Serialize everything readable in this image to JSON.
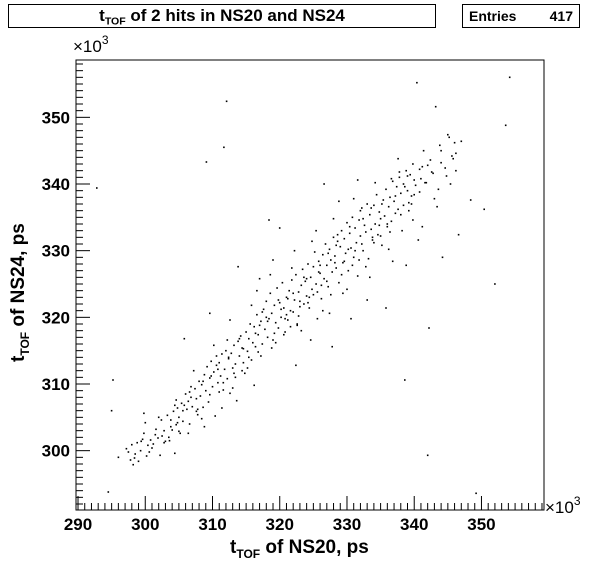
{
  "title_main": "t",
  "title_sub": "TOF",
  "title_rest": " of 2 hits in NS20 and NS24",
  "stats": {
    "label": "Entries",
    "value": "417"
  },
  "chart_data": {
    "type": "scatter",
    "xlabel_main": "t",
    "xlabel_sub": "TOF",
    "xlabel_rest": " of NS20, ps",
    "ylabel_main": "t",
    "ylabel_sub": "TOF",
    "ylabel_rest": " of NS24, ps",
    "x_multiplier": "×10",
    "x_multiplier_exp": "3",
    "y_multiplier": "×10",
    "y_multiplier_exp": "3",
    "xlim": [
      289.7,
      359.3
    ],
    "ylim": [
      291.1,
      358.6
    ],
    "x_ticks": [
      290,
      300,
      310,
      320,
      330,
      340,
      350
    ],
    "y_ticks": [
      300,
      310,
      320,
      330,
      340,
      350
    ],
    "x_tick_labels": [
      "290",
      "300",
      "310",
      "320",
      "330",
      "340",
      "350"
    ],
    "y_tick_labels": [
      "300",
      "310",
      "320",
      "330",
      "340",
      "350"
    ],
    "points": [
      [
        292.8,
        339.4
      ],
      [
        294.5,
        293.8
      ],
      [
        295.0,
        306.0
      ],
      [
        295.2,
        310.6
      ],
      [
        297.2,
        300.3
      ],
      [
        297.5,
        299.8
      ],
      [
        297.8,
        298.6
      ],
      [
        298.0,
        300.9
      ],
      [
        298.2,
        297.9
      ],
      [
        298.5,
        299.5
      ],
      [
        298.8,
        301.2
      ],
      [
        299.0,
        298.4
      ],
      [
        299.3,
        300.0
      ],
      [
        299.6,
        301.7
      ],
      [
        299.8,
        305.6
      ],
      [
        300.2,
        299.2
      ],
      [
        300.4,
        300.8
      ],
      [
        300.8,
        301.6
      ],
      [
        301.2,
        301.0
      ],
      [
        301.5,
        302.4
      ],
      [
        301.9,
        301.9
      ],
      [
        302.2,
        299.3
      ],
      [
        302.5,
        302.2
      ],
      [
        302.8,
        303.0
      ],
      [
        303.0,
        301.4
      ],
      [
        303.3,
        305.3
      ],
      [
        303.5,
        302.0
      ],
      [
        303.8,
        304.6
      ],
      [
        304.0,
        303.1
      ],
      [
        304.2,
        305.9
      ],
      [
        304.4,
        299.6
      ],
      [
        304.6,
        303.9
      ],
      [
        304.8,
        306.4
      ],
      [
        305.0,
        305.0
      ],
      [
        305.2,
        302.6
      ],
      [
        305.4,
        307.1
      ],
      [
        305.6,
        304.4
      ],
      [
        305.8,
        306.8
      ],
      [
        306.0,
        308.5
      ],
      [
        306.2,
        306.2
      ],
      [
        306.4,
        307.4
      ],
      [
        306.6,
        304.0
      ],
      [
        306.8,
        308.0
      ],
      [
        307.0,
        306.6
      ],
      [
        307.2,
        312.0
      ],
      [
        307.4,
        309.3
      ],
      [
        307.6,
        307.8
      ],
      [
        307.8,
        305.4
      ],
      [
        308.0,
        310.4
      ],
      [
        308.2,
        308.2
      ],
      [
        308.4,
        309.9
      ],
      [
        308.6,
        306.5
      ],
      [
        308.8,
        311.4
      ],
      [
        309.0,
        309.0
      ],
      [
        309.1,
        343.3
      ],
      [
        309.2,
        312.6
      ],
      [
        309.4,
        307.3
      ],
      [
        309.6,
        310.9
      ],
      [
        309.8,
        313.4
      ],
      [
        310.0,
        309.6
      ],
      [
        310.2,
        311.8
      ],
      [
        310.4,
        305.2
      ],
      [
        310.6,
        312.8
      ],
      [
        310.8,
        310.2
      ],
      [
        311.0,
        313.2
      ],
      [
        311.2,
        311.2
      ],
      [
        311.4,
        314.5
      ],
      [
        311.6,
        309.1
      ],
      [
        311.7,
        345.5
      ],
      [
        311.8,
        312.2
      ],
      [
        312.0,
        315.0
      ],
      [
        312.1,
        352.4
      ],
      [
        312.2,
        310.8
      ],
      [
        312.4,
        313.8
      ],
      [
        312.6,
        319.6
      ],
      [
        312.8,
        314.6
      ],
      [
        313.0,
        312.4
      ],
      [
        313.2,
        315.8
      ],
      [
        313.4,
        313.0
      ],
      [
        313.6,
        307.5
      ],
      [
        313.8,
        316.4
      ],
      [
        314.0,
        314.2
      ],
      [
        314.2,
        317.2
      ],
      [
        314.4,
        312.0
      ],
      [
        314.6,
        315.3
      ],
      [
        314.8,
        311.6
      ],
      [
        315.0,
        317.8
      ],
      [
        315.2,
        314.9
      ],
      [
        315.4,
        316.8
      ],
      [
        315.6,
        319.0
      ],
      [
        315.8,
        313.6
      ],
      [
        316.0,
        316.2
      ],
      [
        316.2,
        318.6
      ],
      [
        316.4,
        315.6
      ],
      [
        316.6,
        320.4
      ],
      [
        316.8,
        317.4
      ],
      [
        317.0,
        325.8
      ],
      [
        317.2,
        319.4
      ],
      [
        317.4,
        316.0
      ],
      [
        317.6,
        321.2
      ],
      [
        317.8,
        318.2
      ],
      [
        318.0,
        322.4
      ],
      [
        318.2,
        317.0
      ],
      [
        318.4,
        319.8
      ],
      [
        318.6,
        323.6
      ],
      [
        318.8,
        320.6
      ],
      [
        319.0,
        316.6
      ],
      [
        319.2,
        321.8
      ],
      [
        319.4,
        319.2
      ],
      [
        319.6,
        324.4
      ],
      [
        319.8,
        318.4
      ],
      [
        320.0,
        322.2
      ],
      [
        320.2,
        320.0
      ],
      [
        320.4,
        325.2
      ],
      [
        320.6,
        321.4
      ],
      [
        320.8,
        317.8
      ],
      [
        321.0,
        323.0
      ],
      [
        321.2,
        319.6
      ],
      [
        321.4,
        324.0
      ],
      [
        321.6,
        321.0
      ],
      [
        321.8,
        325.6
      ],
      [
        322.0,
        320.8
      ],
      [
        322.2,
        322.6
      ],
      [
        322.4,
        326.4
      ],
      [
        322.6,
        318.8
      ],
      [
        322.8,
        323.8
      ],
      [
        323.0,
        321.6
      ],
      [
        323.2,
        324.8
      ],
      [
        323.4,
        327.2
      ],
      [
        323.6,
        322.0
      ],
      [
        323.8,
        325.4
      ],
      [
        324.0,
        323.2
      ],
      [
        324.2,
        328.0
      ],
      [
        324.4,
        321.4
      ],
      [
        324.6,
        326.0
      ],
      [
        324.8,
        324.2
      ],
      [
        325.0,
        327.6
      ],
      [
        325.2,
        329.8
      ],
      [
        325.4,
        325.0
      ],
      [
        325.6,
        319.8
      ],
      [
        325.8,
        328.4
      ],
      [
        326.0,
        326.6
      ],
      [
        326.2,
        322.8
      ],
      [
        326.4,
        329.4
      ],
      [
        326.6,
        325.8
      ],
      [
        326.8,
        331.0
      ],
      [
        327.0,
        327.8
      ],
      [
        327.2,
        324.6
      ],
      [
        327.4,
        330.2
      ],
      [
        327.6,
        328.6
      ],
      [
        327.8,
        326.8
      ],
      [
        328.0,
        332.0
      ],
      [
        328.2,
        329.2
      ],
      [
        328.4,
        327.4
      ],
      [
        328.6,
        331.4
      ],
      [
        328.8,
        325.2
      ],
      [
        329.0,
        330.6
      ],
      [
        329.2,
        333.0
      ],
      [
        329.4,
        328.2
      ],
      [
        329.6,
        331.8
      ],
      [
        329.8,
        329.6
      ],
      [
        330.0,
        334.2
      ],
      [
        330.2,
        327.0
      ],
      [
        330.4,
        332.6
      ],
      [
        330.6,
        330.4
      ],
      [
        330.8,
        335.0
      ],
      [
        331.0,
        329.0
      ],
      [
        331.2,
        333.4
      ],
      [
        331.4,
        331.2
      ],
      [
        331.6,
        326.2
      ],
      [
        331.8,
        334.6
      ],
      [
        332.0,
        332.2
      ],
      [
        332.2,
        336.4
      ],
      [
        332.4,
        330.0
      ],
      [
        332.6,
        333.8
      ],
      [
        332.8,
        332.8
      ],
      [
        333.0,
        337.0
      ],
      [
        333.2,
        328.8
      ],
      [
        333.4,
        335.4
      ],
      [
        333.6,
        333.2
      ],
      [
        333.8,
        331.6
      ],
      [
        334.0,
        336.8
      ],
      [
        334.2,
        334.0
      ],
      [
        334.4,
        338.4
      ],
      [
        334.6,
        332.4
      ],
      [
        334.8,
        335.8
      ],
      [
        335.0,
        334.8
      ],
      [
        335.2,
        330.8
      ],
      [
        335.4,
        337.6
      ],
      [
        335.6,
        335.2
      ],
      [
        335.8,
        339.2
      ],
      [
        336.0,
        333.6
      ],
      [
        336.2,
        336.6
      ],
      [
        336.4,
        338.0
      ],
      [
        336.6,
        334.4
      ],
      [
        336.8,
        340.4
      ],
      [
        337.0,
        337.4
      ],
      [
        337.2,
        335.6
      ],
      [
        337.4,
        339.6
      ],
      [
        337.6,
        336.2
      ],
      [
        337.8,
        341.0
      ],
      [
        338.0,
        338.6
      ],
      [
        338.2,
        333.0
      ],
      [
        338.4,
        340.0
      ],
      [
        338.6,
        310.6
      ],
      [
        338.8,
        342.0
      ],
      [
        339.0,
        339.0
      ],
      [
        339.2,
        336.0
      ],
      [
        339.4,
        341.4
      ],
      [
        339.6,
        338.2
      ],
      [
        339.8,
        343.0
      ],
      [
        340.0,
        340.6
      ],
      [
        340.4,
        355.2
      ],
      [
        340.8,
        338.8
      ],
      [
        341.2,
        342.6
      ],
      [
        341.6,
        340.2
      ],
      [
        342.0,
        299.3
      ],
      [
        342.2,
        318.4
      ],
      [
        342.4,
        343.6
      ],
      [
        342.8,
        341.6
      ],
      [
        343.2,
        351.6
      ],
      [
        343.6,
        339.2
      ],
      [
        344.0,
        345.0
      ],
      [
        344.6,
        342.4
      ],
      [
        345.2,
        347.0
      ],
      [
        345.6,
        344.2
      ],
      [
        346.0,
        346.2
      ],
      [
        346.6,
        332.4
      ],
      [
        348.4,
        337.6
      ],
      [
        349.2,
        293.6
      ],
      [
        350.4,
        336.2
      ],
      [
        352.0,
        325.0
      ],
      [
        353.6,
        348.8
      ],
      [
        354.2,
        356.0
      ],
      [
        296.0,
        299.0
      ],
      [
        299.8,
        302.6
      ],
      [
        301.0,
        300.4
      ],
      [
        303.6,
        301.5
      ],
      [
        305.0,
        302.9
      ],
      [
        307.6,
        305.9
      ],
      [
        309.8,
        311.2
      ],
      [
        311.0,
        308.8
      ],
      [
        313.2,
        311.6
      ],
      [
        314.6,
        313.2
      ],
      [
        316.8,
        314.8
      ],
      [
        318.0,
        320.0
      ],
      [
        319.8,
        322.6
      ],
      [
        321.6,
        318.6
      ],
      [
        322.8,
        320.2
      ],
      [
        324.4,
        323.0
      ],
      [
        325.6,
        323.8
      ],
      [
        327.2,
        329.6
      ],
      [
        328.4,
        330.8
      ],
      [
        330.8,
        327.8
      ],
      [
        332.2,
        331.0
      ],
      [
        333.6,
        336.4
      ],
      [
        335.0,
        332.2
      ],
      [
        336.6,
        340.8
      ],
      [
        338.0,
        335.4
      ],
      [
        339.2,
        337.2
      ],
      [
        341.0,
        340.8
      ],
      [
        343.0,
        337.8
      ],
      [
        344.8,
        341.2
      ],
      [
        345.8,
        343.8
      ],
      [
        300.0,
        304.2
      ],
      [
        302.0,
        305.0
      ],
      [
        304.6,
        307.6
      ],
      [
        306.8,
        309.6
      ],
      [
        308.8,
        303.6
      ],
      [
        310.6,
        314.2
      ],
      [
        312.6,
        308.6
      ],
      [
        314.0,
        316.8
      ],
      [
        315.8,
        321.8
      ],
      [
        317.2,
        314.2
      ],
      [
        318.6,
        326.4
      ],
      [
        320.6,
        317.4
      ],
      [
        321.8,
        327.4
      ],
      [
        323.2,
        318.0
      ],
      [
        324.8,
        331.4
      ],
      [
        326.4,
        321.0
      ],
      [
        328.0,
        334.8
      ],
      [
        329.4,
        323.6
      ],
      [
        331.0,
        337.8
      ],
      [
        332.8,
        327.6
      ],
      [
        334.2,
        340.2
      ],
      [
        336.2,
        330.2
      ],
      [
        337.6,
        343.8
      ],
      [
        339.8,
        334.6
      ],
      [
        341.4,
        345.0
      ],
      [
        343.4,
        336.6
      ],
      [
        346.2,
        342.0
      ],
      [
        335.8,
        321.4
      ],
      [
        326.6,
        340.0
      ],
      [
        320.0,
        333.4
      ],
      [
        316.2,
        309.8
      ],
      [
        313.8,
        327.6
      ],
      [
        322.4,
        312.8
      ],
      [
        330.6,
        319.8
      ],
      [
        338.8,
        327.8
      ],
      [
        344.2,
        329.0
      ],
      [
        305.8,
        316.8
      ],
      [
        309.6,
        320.6
      ],
      [
        318.4,
        334.6
      ],
      [
        327.8,
        315.6
      ],
      [
        333.0,
        322.6
      ],
      [
        340.6,
        331.6
      ],
      [
        347.0,
        346.4
      ],
      [
        346.2,
        344.6
      ],
      [
        345.0,
        347.4
      ],
      [
        344.0,
        343.2
      ],
      [
        342.6,
        341.8
      ],
      [
        341.8,
        340.2
      ],
      [
        340.2,
        339.8
      ],
      [
        339.6,
        337.0
      ],
      [
        338.4,
        336.8
      ],
      [
        337.2,
        338.2
      ],
      [
        336.0,
        334.0
      ],
      [
        334.8,
        333.8
      ],
      [
        333.8,
        332.0
      ],
      [
        332.4,
        334.8
      ],
      [
        331.2,
        330.0
      ],
      [
        330.2,
        330.2
      ],
      [
        329.2,
        326.4
      ],
      [
        328.2,
        328.2
      ],
      [
        327.0,
        325.4
      ],
      [
        326.0,
        327.8
      ],
      [
        325.0,
        323.4
      ],
      [
        324.0,
        325.8
      ],
      [
        323.0,
        322.4
      ],
      [
        322.0,
        323.6
      ],
      [
        321.0,
        320.4
      ],
      [
        320.2,
        321.2
      ],
      [
        319.2,
        317.6
      ],
      [
        318.2,
        319.4
      ],
      [
        317.4,
        320.8
      ],
      [
        316.4,
        317.6
      ],
      [
        315.4,
        314.0
      ],
      [
        314.4,
        315.4
      ],
      [
        313.4,
        311.0
      ],
      [
        312.4,
        314.0
      ],
      [
        311.6,
        310.2
      ],
      [
        310.8,
        312.2
      ],
      [
        309.6,
        308.4
      ],
      [
        308.6,
        310.4
      ],
      [
        307.8,
        306.2
      ],
      [
        306.6,
        308.8
      ],
      [
        305.6,
        306.0
      ],
      [
        304.8,
        304.2
      ],
      [
        303.8,
        303.6
      ],
      [
        302.8,
        301.2
      ],
      [
        301.6,
        303.2
      ],
      [
        300.6,
        299.8
      ],
      [
        299.4,
        301.4
      ],
      [
        298.4,
        298.9
      ],
      [
        319.4,
        316.2
      ],
      [
        320.8,
        319.8
      ],
      [
        322.6,
        319.0
      ],
      [
        324.2,
        322.2
      ],
      [
        325.8,
        326.8
      ],
      [
        327.6,
        323.4
      ],
      [
        329.6,
        328.4
      ],
      [
        331.8,
        328.6
      ],
      [
        334.0,
        331.2
      ],
      [
        336.4,
        332.8
      ],
      [
        338.6,
        339.6
      ],
      [
        340.8,
        342.2
      ],
      [
        311.4,
        306.4
      ],
      [
        313.0,
        309.4
      ],
      [
        315.2,
        312.4
      ],
      [
        317.0,
        318.8
      ],
      [
        318.8,
        315.4
      ],
      [
        321.2,
        322.8
      ],
      [
        323.6,
        326.0
      ],
      [
        326.2,
        324.8
      ],
      [
        328.6,
        332.4
      ],
      [
        330.4,
        333.6
      ],
      [
        332.0,
        336.0
      ],
      [
        335.2,
        337.0
      ],
      [
        337.8,
        341.8
      ],
      [
        340.0,
        338.4
      ],
      [
        342.0,
        342.8
      ],
      [
        343.8,
        345.8
      ],
      [
        345.4,
        340.0
      ],
      [
        339.0,
        341.2
      ],
      [
        308.4,
        304.8
      ],
      [
        306.4,
        302.6
      ],
      [
        304.4,
        306.8
      ],
      [
        302.4,
        304.6
      ],
      [
        310.2,
        315.8
      ],
      [
        312.2,
        316.6
      ],
      [
        316.6,
        324.0
      ],
      [
        319.0,
        328.6
      ],
      [
        322.2,
        330.0
      ],
      [
        325.4,
        333.0
      ],
      [
        328.8,
        337.4
      ],
      [
        331.6,
        340.6
      ],
      [
        324.6,
        316.6
      ],
      [
        327.4,
        320.6
      ],
      [
        330.0,
        324.2
      ],
      [
        333.4,
        326.0
      ],
      [
        336.8,
        328.4
      ],
      [
        341.2,
        333.6
      ]
    ]
  }
}
